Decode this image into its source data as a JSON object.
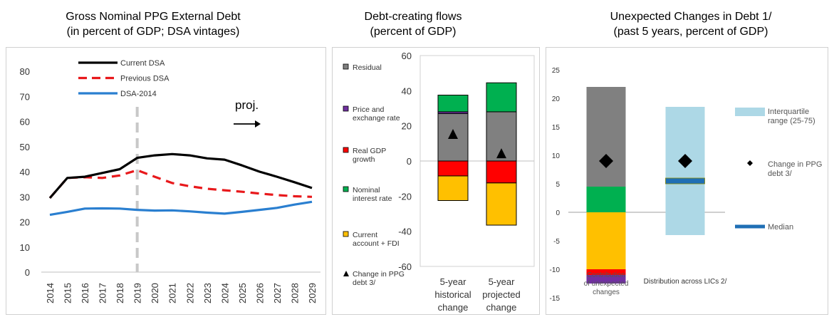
{
  "chart_data": [
    {
      "type": "line",
      "title": "Gross Nominal PPG External Debt",
      "subtitle": "(in percent of GDP; DSA vintages)",
      "x": [
        "2014",
        "2015",
        "2016",
        "2017",
        "2018",
        "2019",
        "2020",
        "2021",
        "2022",
        "2023",
        "2024",
        "2025",
        "2026",
        "2027",
        "2028",
        "2029"
      ],
      "ylim": [
        0,
        80
      ],
      "yticks": [
        0,
        10,
        20,
        30,
        40,
        50,
        60,
        70,
        80
      ],
      "projection_start": "2019",
      "annotation": "proj.",
      "legend_position": "top-left",
      "series": [
        {
          "name": "Current DSA",
          "color": "#000000",
          "style": "solid",
          "values": [
            29.5,
            37.5,
            38,
            39.5,
            41,
            45.5,
            46.5,
            47,
            46.5,
            45.3,
            44.8,
            42.5,
            40,
            38,
            35.8,
            33.5
          ]
        },
        {
          "name": "Previous DSA",
          "color": "#e8191c",
          "style": "dashed",
          "values": [
            29.5,
            37.5,
            37.8,
            37.5,
            38.5,
            40.6,
            38,
            35.5,
            34.2,
            33.2,
            32.6,
            32,
            31.3,
            30.7,
            30.2,
            30
          ]
        },
        {
          "name": "DSA-2014",
          "color": "#2a7fd0",
          "style": "solid",
          "values": [
            22.8,
            24,
            25.3,
            25.4,
            25.3,
            24.8,
            24.5,
            24.6,
            24.2,
            23.7,
            23.3,
            24,
            24.8,
            25.6,
            26.9,
            28
          ]
        }
      ]
    },
    {
      "type": "bar",
      "title": "Debt-creating flows",
      "subtitle": "(percent of GDP)",
      "stacked": true,
      "categories": [
        "5-year historical change",
        "5-year projected change"
      ],
      "ylim": [
        -60,
        60
      ],
      "yticks": [
        -60,
        -40,
        -20,
        0,
        20,
        40,
        60
      ],
      "legend_position": "left",
      "series": [
        {
          "name": "Residual",
          "color": "#808080",
          "values": [
            27,
            28
          ]
        },
        {
          "name": "Price and exchange rate",
          "color": "#7030a0",
          "values": [
            1,
            0
          ]
        },
        {
          "name": "Real GDP growth",
          "color": "#ff0000",
          "values": [
            -8.5,
            -12.5
          ]
        },
        {
          "name": "Nominal interest rate",
          "color": "#00b050",
          "values": [
            9.5,
            16.5
          ]
        },
        {
          "name": "Current account + FDI",
          "color": "#ffc000",
          "values": [
            -14,
            -24
          ]
        }
      ],
      "markers": {
        "name": "Change in PPG debt 3/",
        "color": "#000000",
        "values": [
          15,
          4
        ]
      }
    },
    {
      "type": "bar",
      "title": "Unexpected Changes in Debt 1/",
      "subtitle": "(past 5 years, percent of GDP)",
      "ylim": [
        -15,
        25
      ],
      "yticks": [
        -15,
        -10,
        -5,
        0,
        5,
        10,
        15,
        20,
        25
      ],
      "categories": [
        "Contribution of unexpected changes",
        "Distribution across LICs 2/"
      ],
      "legend_position": "right",
      "stack": [
        {
          "color": "#808080",
          "from": 4.5,
          "to": 22
        },
        {
          "color": "#00b050",
          "from": 0,
          "to": 4.5
        },
        {
          "color": "#ffc000",
          "from": -10,
          "to": 0
        },
        {
          "color": "#ff0000",
          "from": -11,
          "to": -10
        },
        {
          "color": "#7030a0",
          "from": -12.5,
          "to": -11
        }
      ],
      "interquartile": {
        "name": "Interquartile range (25-75)",
        "color": "#add8e6",
        "low": -4,
        "high": 18.5
      },
      "median": {
        "name": "Median",
        "color": "#1f6fb5",
        "value": 5.5
      },
      "change_marker": {
        "name": "Change in PPG debt 3/",
        "values": [
          9,
          9
        ]
      }
    }
  ]
}
